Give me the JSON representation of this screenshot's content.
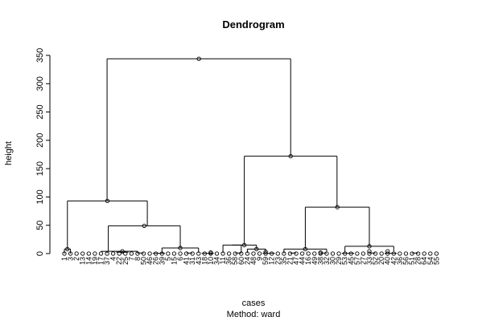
{
  "chart_data": {
    "type": "dendrogram",
    "title": "Dendrogram",
    "xlabel": "cases",
    "ylabel": "height",
    "subtitle": "Method:  ward",
    "ylim": [
      0,
      350
    ],
    "yticks": [
      0,
      50,
      100,
      150,
      200,
      250,
      300,
      350
    ],
    "leaves": [
      "1",
      "3",
      "2",
      "13",
      "14",
      "19",
      "17",
      "37",
      "4",
      "22",
      "25",
      "7",
      "8",
      "50",
      "46",
      "26",
      "39",
      "5",
      "15",
      "6",
      "41",
      "31",
      "43",
      "18",
      "10",
      "34",
      "11",
      "36",
      "58",
      "60",
      "24",
      "48",
      "9",
      "59",
      "12",
      "23",
      "35",
      "21",
      "47",
      "44",
      "16",
      "49",
      "38",
      "32",
      "30",
      "29",
      "53",
      "45",
      "57",
      "27",
      "33",
      "52",
      "20",
      "40",
      "42",
      "36",
      "56",
      "51",
      "28",
      "64",
      "54",
      "55"
    ],
    "merges": [
      {
        "height": 344,
        "left": 93,
        "right": 172
      },
      {
        "height": 172,
        "left": 15,
        "right": 82
      },
      {
        "height": 93,
        "left": 8,
        "right": 49
      },
      {
        "height": 82,
        "left": 6,
        "right": 13
      },
      {
        "height": 49,
        "left": 5,
        "right": 10
      },
      {
        "height": 15,
        "left": 3,
        "right": 8
      },
      {
        "height": 13,
        "left": 4,
        "right": 9
      },
      {
        "height": 10,
        "left": 3,
        "right": 4
      },
      {
        "height": 8,
        "left": 0,
        "right": 1
      }
    ]
  }
}
